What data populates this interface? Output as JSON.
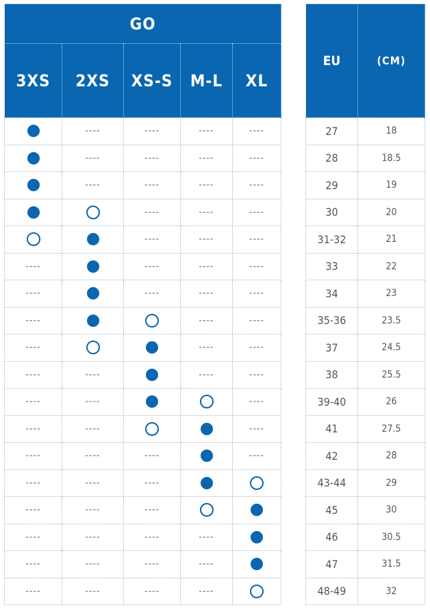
{
  "left_table": {
    "title": "GO",
    "columns": [
      "3XS",
      "2XS",
      "XS-S",
      "M-L",
      "XL"
    ],
    "rows": [
      [
        "filled",
        "dash",
        "dash",
        "dash",
        "dash"
      ],
      [
        "filled",
        "dash",
        "dash",
        "dash",
        "dash"
      ],
      [
        "filled",
        "dash",
        "dash",
        "dash",
        "dash"
      ],
      [
        "filled",
        "open",
        "dash",
        "dash",
        "dash"
      ],
      [
        "open",
        "filled",
        "dash",
        "dash",
        "dash"
      ],
      [
        "dash",
        "filled",
        "dash",
        "dash",
        "dash"
      ],
      [
        "dash",
        "filled",
        "dash",
        "dash",
        "dash"
      ],
      [
        "dash",
        "filled",
        "open",
        "dash",
        "dash"
      ],
      [
        "dash",
        "open",
        "filled",
        "dash",
        "dash"
      ],
      [
        "dash",
        "dash",
        "filled",
        "dash",
        "dash"
      ],
      [
        "dash",
        "dash",
        "filled",
        "open",
        "dash"
      ],
      [
        "dash",
        "dash",
        "open",
        "filled",
        "dash"
      ],
      [
        "dash",
        "dash",
        "dash",
        "filled",
        "dash"
      ],
      [
        "dash",
        "dash",
        "dash",
        "filled",
        "open"
      ],
      [
        "dash",
        "dash",
        "dash",
        "open",
        "filled"
      ],
      [
        "dash",
        "dash",
        "dash",
        "dash",
        "filled"
      ],
      [
        "dash",
        "dash",
        "dash",
        "dash",
        "filled"
      ],
      [
        "dash",
        "dash",
        "dash",
        "dash",
        "open"
      ]
    ],
    "dash_text": "----"
  },
  "right_table": {
    "headers": [
      "EU",
      "(CM)"
    ],
    "rows": [
      [
        "27",
        "18"
      ],
      [
        "28",
        "18.5"
      ],
      [
        "29",
        "19"
      ],
      [
        "30",
        "20"
      ],
      [
        "31-32",
        "21"
      ],
      [
        "33",
        "22"
      ],
      [
        "34",
        "23"
      ],
      [
        "35-36",
        "23.5"
      ],
      [
        "37",
        "24.5"
      ],
      [
        "38",
        "25.5"
      ],
      [
        "39-40",
        "26"
      ],
      [
        "41",
        "27.5"
      ],
      [
        "42",
        "28"
      ],
      [
        "43-44",
        "29"
      ],
      [
        "45",
        "30"
      ],
      [
        "46",
        "30.5"
      ],
      [
        "47",
        "31.5"
      ],
      [
        "48-49",
        "32"
      ]
    ]
  },
  "colors": {
    "header_blue": "#0a66b0",
    "dot_blue": "#0a66b0",
    "grid_line": "#a9b8c6"
  },
  "icons": {
    "filled": "filled-circle-icon",
    "open": "open-circle-icon"
  }
}
